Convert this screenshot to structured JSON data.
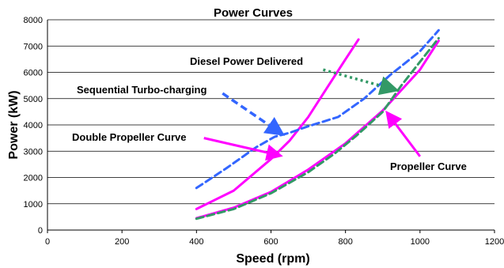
{
  "chart_data": {
    "type": "line",
    "title": "Power Curves",
    "xlabel": "Speed (rpm)",
    "ylabel": "Power (kW)",
    "xlim": [
      0,
      1200
    ],
    "ylim": [
      0,
      8000
    ],
    "x_ticks": [
      0,
      200,
      400,
      600,
      800,
      1000,
      1200
    ],
    "y_ticks": [
      0,
      1000,
      2000,
      3000,
      4000,
      5000,
      6000,
      7000,
      8000
    ],
    "grid": "horizontal",
    "legend": "none",
    "series": [
      {
        "name": "",
        "color": "#ff00ff",
        "style": "solid",
        "points": [
          [
            400,
            450
          ],
          [
            500,
            850
          ],
          [
            600,
            1450
          ],
          [
            700,
            2300
          ],
          [
            800,
            3300
          ],
          [
            900,
            4550
          ],
          [
            1000,
            6100
          ],
          [
            1050,
            7200
          ]
        ]
      },
      {
        "name": "",
        "color": "#ff00ff",
        "style": "solid",
        "points": [
          [
            400,
            800
          ],
          [
            500,
            1500
          ],
          [
            600,
            2700
          ],
          [
            650,
            3400
          ],
          [
            700,
            4300
          ],
          [
            750,
            5400
          ],
          [
            800,
            6500
          ],
          [
            835,
            7250
          ]
        ]
      },
      {
        "name": "",
        "color": "#339966",
        "style": "dashed",
        "points": [
          [
            400,
            430
          ],
          [
            500,
            800
          ],
          [
            600,
            1400
          ],
          [
            700,
            2200
          ],
          [
            770,
            2900
          ],
          [
            830,
            3600
          ],
          [
            900,
            4500
          ],
          [
            950,
            5500
          ],
          [
            1000,
            6400
          ],
          [
            1050,
            7300
          ]
        ]
      },
      {
        "name": "",
        "color": "#3366ff",
        "style": "dashed",
        "points": [
          [
            400,
            1600
          ],
          [
            480,
            2350
          ],
          [
            560,
            3150
          ],
          [
            610,
            3550
          ],
          [
            650,
            3700
          ],
          [
            700,
            3950
          ],
          [
            780,
            4300
          ],
          [
            850,
            5000
          ],
          [
            920,
            5900
          ],
          [
            1000,
            6800
          ],
          [
            1050,
            7600
          ]
        ]
      }
    ],
    "annotations": [
      {
        "text": "Diesel Power Delivered",
        "color": "#339966",
        "style": "dotted",
        "from": [
          740,
          6100
        ],
        "to": [
          930,
          5350
        ]
      },
      {
        "text": "Sequential Turbo-charging",
        "color": "#3366ff",
        "style": "dashed",
        "from": [
          470,
          5200
        ],
        "to": [
          625,
          3700
        ]
      },
      {
        "text": "Double Propeller Curve",
        "color": "#ff00ff",
        "style": "solid",
        "from": [
          420,
          3500
        ],
        "to": [
          620,
          2850
        ]
      },
      {
        "text": "Propeller Curve",
        "color": "#ff00ff",
        "style": "solid",
        "from": [
          1000,
          2800
        ],
        "to": [
          915,
          4400
        ]
      }
    ]
  }
}
